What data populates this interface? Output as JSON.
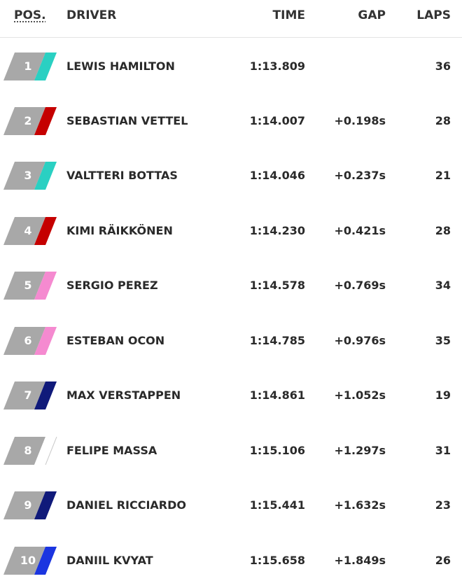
{
  "header": {
    "pos": "POS.",
    "driver": "DRIVER",
    "time": "TIME",
    "gap": "GAP",
    "laps": "LAPS"
  },
  "rows": [
    {
      "pos": "1",
      "driver": "LEWIS HAMILTON",
      "time": "1:13.809",
      "gap": "",
      "laps": "36",
      "team_color": "#2ad0c2"
    },
    {
      "pos": "2",
      "driver": "SEBASTIAN VETTEL",
      "time": "1:14.007",
      "gap": "+0.198s",
      "laps": "28",
      "team_color": "#c50000"
    },
    {
      "pos": "3",
      "driver": "VALTTERI BOTTAS",
      "time": "1:14.046",
      "gap": "+0.237s",
      "laps": "21",
      "team_color": "#2ad0c2"
    },
    {
      "pos": "4",
      "driver": "KIMI RÄIKKÖNEN",
      "time": "1:14.230",
      "gap": "+0.421s",
      "laps": "28",
      "team_color": "#c50000"
    },
    {
      "pos": "5",
      "driver": "SERGIO PEREZ",
      "time": "1:14.578",
      "gap": "+0.769s",
      "laps": "34",
      "team_color": "#f58ad0"
    },
    {
      "pos": "6",
      "driver": "ESTEBAN OCON",
      "time": "1:14.785",
      "gap": "+0.976s",
      "laps": "35",
      "team_color": "#f58ad0"
    },
    {
      "pos": "7",
      "driver": "MAX VERSTAPPEN",
      "time": "1:14.861",
      "gap": "+1.052s",
      "laps": "19",
      "team_color": "#101a7a"
    },
    {
      "pos": "8",
      "driver": "FELIPE MASSA",
      "time": "1:15.106",
      "gap": "+1.297s",
      "laps": "31",
      "team_color": "#ffffff"
    },
    {
      "pos": "9",
      "driver": "DANIEL RICCIARDO",
      "time": "1:15.441",
      "gap": "+1.632s",
      "laps": "23",
      "team_color": "#101a7a"
    },
    {
      "pos": "10",
      "driver": "DANIIL KVYAT",
      "time": "1:15.658",
      "gap": "+1.849s",
      "laps": "26",
      "team_color": "#1b35e0"
    }
  ]
}
